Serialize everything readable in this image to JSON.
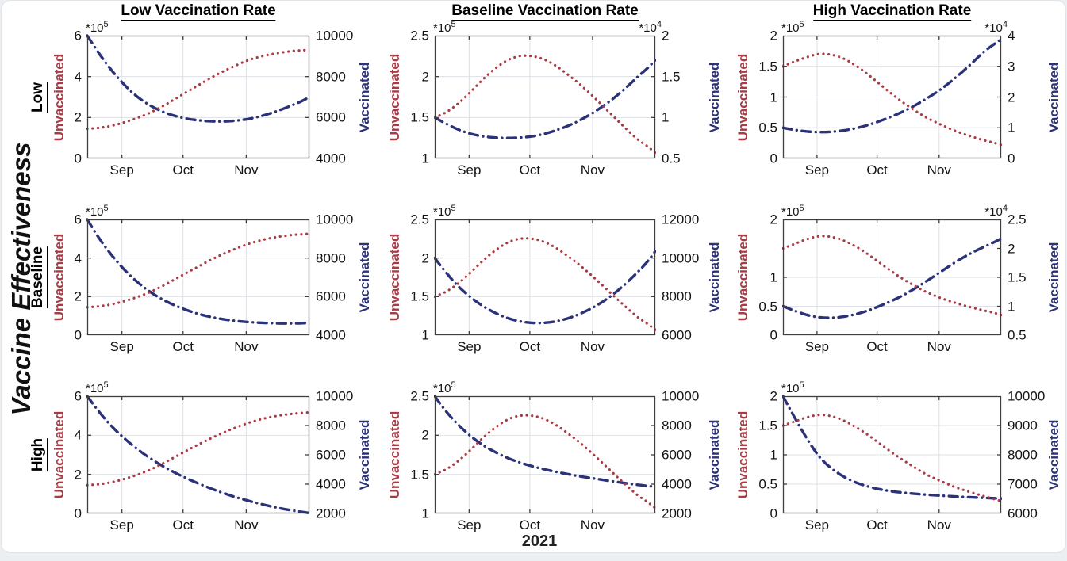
{
  "figure": {
    "ylabel_left": "Vaccine Effectiveness",
    "xlabel": "2021",
    "column_titles": [
      "Low Vaccination Rate",
      "Baseline Vaccination Rate",
      "High Vaccination Rate"
    ],
    "row_labels": [
      "Low",
      "Baseline",
      "High"
    ],
    "series_labels": {
      "unvaccinated": "Unvaccinated",
      "vaccinated": "Vaccinated"
    },
    "colors": {
      "unvaccinated": "#a93b44",
      "vaccinated": "#2b3278",
      "grid": "#dde0e6",
      "axis": "#3f3f3f",
      "tick_text": "#141414"
    }
  },
  "chart_data": {
    "type": "line",
    "grid": "on",
    "x_axis": {
      "range_days": [
        0,
        109
      ],
      "ticks": [
        {
          "day": 17,
          "label": "Sep"
        },
        {
          "day": 47,
          "label": "Oct"
        },
        {
          "day": 78,
          "label": "Nov"
        }
      ],
      "year_label": "2021"
    },
    "x_days": [
      0,
      6,
      12,
      18,
      24,
      30,
      36,
      42,
      48,
      54,
      60,
      66,
      72,
      79,
      86,
      93,
      100,
      105,
      109
    ],
    "exp_base": "*10",
    "panels": [
      {
        "id": "r1c1",
        "row_label": "Low",
        "column_title": "Low Vaccination Rate",
        "left_axis": {
          "min": 0,
          "max": 6,
          "ticks": [
            "0",
            "2",
            "4",
            "6"
          ],
          "exp_sup": "5"
        },
        "right_axis": {
          "min": 4000,
          "max": 10000,
          "ticks": [
            "4000",
            "6000",
            "8000",
            "10000"
          ],
          "exp_sup": null
        },
        "unvaccinated": [
          1.45,
          1.5,
          1.6,
          1.76,
          1.96,
          2.2,
          2.5,
          2.84,
          3.2,
          3.55,
          3.9,
          4.22,
          4.5,
          4.8,
          5.0,
          5.14,
          5.24,
          5.28,
          5.3
        ],
        "vaccinated": [
          10000,
          9100,
          8300,
          7620,
          7060,
          6640,
          6330,
          6110,
          5960,
          5870,
          5820,
          5810,
          5840,
          5930,
          6090,
          6310,
          6580,
          6790,
          7000
        ]
      },
      {
        "id": "r1c2",
        "row_label": "Low",
        "column_title": "Baseline Vaccination Rate",
        "left_axis": {
          "min": 1,
          "max": 2.5,
          "ticks": [
            "1",
            "1.5",
            "2",
            "2.5"
          ],
          "exp_sup": "5"
        },
        "right_axis": {
          "min": 0.5,
          "max": 2,
          "ticks": [
            "0.5",
            "1",
            "1.5",
            "2"
          ],
          "exp_sup": "4"
        },
        "unvaccinated": [
          1.5,
          1.57,
          1.68,
          1.82,
          1.97,
          2.1,
          2.2,
          2.25,
          2.25,
          2.21,
          2.13,
          2.02,
          1.9,
          1.74,
          1.57,
          1.4,
          1.24,
          1.15,
          1.07
        ],
        "vaccinated": [
          1.0,
          0.92,
          0.85,
          0.8,
          0.77,
          0.755,
          0.75,
          0.755,
          0.77,
          0.8,
          0.845,
          0.9,
          0.97,
          1.07,
          1.19,
          1.33,
          1.49,
          1.6,
          1.7
        ]
      },
      {
        "id": "r1c3",
        "row_label": "Low",
        "column_title": "High Vaccination Rate",
        "left_axis": {
          "min": 0,
          "max": 2,
          "ticks": [
            "0",
            "0.5",
            "1",
            "1.5",
            "2"
          ],
          "exp_sup": "5"
        },
        "right_axis": {
          "min": 0,
          "max": 4,
          "ticks": [
            "0",
            "1",
            "2",
            "3",
            "4"
          ],
          "exp_sup": "4"
        },
        "unvaccinated": [
          1.5,
          1.58,
          1.65,
          1.7,
          1.69,
          1.63,
          1.52,
          1.38,
          1.22,
          1.06,
          0.91,
          0.78,
          0.66,
          0.55,
          0.45,
          0.37,
          0.3,
          0.26,
          0.22
        ],
        "vaccinated": [
          1.0,
          0.93,
          0.88,
          0.86,
          0.87,
          0.91,
          0.98,
          1.08,
          1.21,
          1.36,
          1.53,
          1.73,
          1.96,
          2.26,
          2.62,
          3.02,
          3.45,
          3.7,
          3.88
        ]
      },
      {
        "id": "r2c1",
        "row_label": "Baseline",
        "column_title": "Low Vaccination Rate",
        "left_axis": {
          "min": 0,
          "max": 6,
          "ticks": [
            "0",
            "2",
            "4",
            "6"
          ],
          "exp_sup": "5"
        },
        "right_axis": {
          "min": 4000,
          "max": 10000,
          "ticks": [
            "4000",
            "6000",
            "8000",
            "10000"
          ],
          "exp_sup": null
        },
        "unvaccinated": [
          1.45,
          1.5,
          1.6,
          1.76,
          1.96,
          2.2,
          2.5,
          2.84,
          3.19,
          3.53,
          3.87,
          4.18,
          4.45,
          4.73,
          4.94,
          5.09,
          5.19,
          5.23,
          5.26
        ],
        "vaccinated": [
          10000,
          9000,
          8150,
          7420,
          6810,
          6310,
          5910,
          5590,
          5330,
          5120,
          4960,
          4840,
          4750,
          4680,
          4640,
          4615,
          4610,
          4620,
          4650
        ]
      },
      {
        "id": "r2c2",
        "row_label": "Baseline",
        "column_title": "Baseline Vaccination Rate",
        "left_axis": {
          "min": 1,
          "max": 2.5,
          "ticks": [
            "1",
            "1.5",
            "2",
            "2.5"
          ],
          "exp_sup": "5"
        },
        "right_axis": {
          "min": 6000,
          "max": 12000,
          "ticks": [
            "6000",
            "8000",
            "10000",
            "12000"
          ],
          "exp_sup": null
        },
        "unvaccinated": [
          1.5,
          1.57,
          1.68,
          1.82,
          1.97,
          2.1,
          2.2,
          2.25,
          2.25,
          2.21,
          2.13,
          2.02,
          1.9,
          1.74,
          1.57,
          1.4,
          1.24,
          1.15,
          1.07
        ],
        "vaccinated": [
          10000,
          9200,
          8500,
          7950,
          7500,
          7150,
          6890,
          6720,
          6640,
          6640,
          6720,
          6880,
          7120,
          7480,
          7950,
          8540,
          9240,
          9800,
          10350
        ]
      },
      {
        "id": "r2c3",
        "row_label": "Baseline",
        "column_title": "High Vaccination Rate",
        "left_axis": {
          "min": 0,
          "max": 2,
          "ticks": [
            "0",
            "0.5",
            "1",
            "2"
          ],
          "exp_sup": "5"
        },
        "right_axis": {
          "min": 0.5,
          "max": 2.5,
          "ticks": [
            "0.5",
            "1",
            "1.5",
            "2",
            "2.5"
          ],
          "exp_sup": "4"
        },
        "unvaccinated": [
          1.5,
          1.58,
          1.66,
          1.71,
          1.7,
          1.64,
          1.54,
          1.41,
          1.26,
          1.11,
          0.97,
          0.85,
          0.74,
          0.64,
          0.56,
          0.49,
          0.43,
          0.39,
          0.35
        ],
        "vaccinated": [
          1.0,
          0.92,
          0.85,
          0.81,
          0.8,
          0.82,
          0.86,
          0.92,
          1.0,
          1.09,
          1.19,
          1.31,
          1.44,
          1.6,
          1.76,
          1.9,
          2.02,
          2.1,
          2.17
        ]
      },
      {
        "id": "r3c1",
        "row_label": "High",
        "column_title": "Low Vaccination Rate",
        "left_axis": {
          "min": 0,
          "max": 6,
          "ticks": [
            "0",
            "2",
            "4",
            "6"
          ],
          "exp_sup": "5"
        },
        "right_axis": {
          "min": 2000,
          "max": 10000,
          "ticks": [
            "2000",
            "4000",
            "6000",
            "8000",
            "10000"
          ],
          "exp_sup": null
        },
        "unvaccinated": [
          1.45,
          1.5,
          1.6,
          1.76,
          1.96,
          2.2,
          2.5,
          2.83,
          3.17,
          3.5,
          3.81,
          4.1,
          4.36,
          4.63,
          4.84,
          4.99,
          5.09,
          5.14,
          5.17
        ],
        "vaccinated": [
          10000,
          8900,
          7950,
          7150,
          6450,
          5850,
          5320,
          4860,
          4450,
          4080,
          3740,
          3430,
          3150,
          2870,
          2620,
          2400,
          2220,
          2110,
          2030
        ]
      },
      {
        "id": "r3c2",
        "row_label": "High",
        "column_title": "Baseline Vaccination Rate",
        "left_axis": {
          "min": 1,
          "max": 2.5,
          "ticks": [
            "1",
            "1.5",
            "2",
            "2.5"
          ],
          "exp_sup": "5"
        },
        "right_axis": {
          "min": 2000,
          "max": 10000,
          "ticks": [
            "2000",
            "4000",
            "6000",
            "8000",
            "10000"
          ],
          "exp_sup": null
        },
        "unvaccinated": [
          1.5,
          1.57,
          1.68,
          1.82,
          1.97,
          2.1,
          2.2,
          2.25,
          2.25,
          2.21,
          2.13,
          2.02,
          1.9,
          1.74,
          1.57,
          1.4,
          1.24,
          1.15,
          1.07
        ],
        "vaccinated": [
          10000,
          8900,
          8000,
          7250,
          6650,
          6180,
          5790,
          5480,
          5230,
          5020,
          4840,
          4680,
          4530,
          4380,
          4230,
          4090,
          3960,
          3880,
          3820
        ]
      },
      {
        "id": "r3c3",
        "row_label": "High",
        "column_title": "High Vaccination Rate",
        "left_axis": {
          "min": 0,
          "max": 2,
          "ticks": [
            "0",
            "0.5",
            "1",
            "1.5",
            "2"
          ],
          "exp_sup": "5"
        },
        "right_axis": {
          "min": 6000,
          "max": 10000,
          "ticks": [
            "6000",
            "7000",
            "8000",
            "9000",
            "10000"
          ],
          "exp_sup": null
        },
        "unvaccinated": [
          1.5,
          1.57,
          1.64,
          1.68,
          1.66,
          1.59,
          1.48,
          1.35,
          1.2,
          1.05,
          0.91,
          0.78,
          0.66,
          0.55,
          0.45,
          0.37,
          0.3,
          0.25,
          0.21
        ],
        "vaccinated": [
          10000,
          9250,
          8550,
          7950,
          7550,
          7270,
          7070,
          6930,
          6830,
          6760,
          6710,
          6670,
          6640,
          6610,
          6580,
          6555,
          6535,
          6520,
          6510
        ]
      }
    ]
  }
}
